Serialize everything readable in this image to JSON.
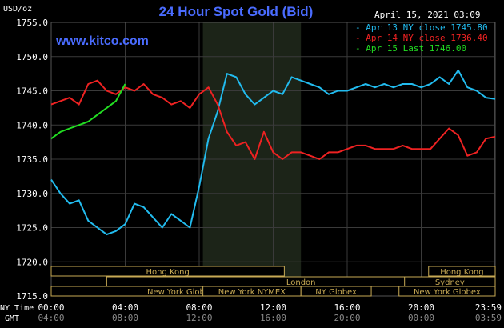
{
  "chart_data": {
    "type": "line",
    "title": "24 Hour Spot Gold (Bid)",
    "site": "www.kitco.com",
    "date_label": "April 15, 2021 03:09",
    "ylabel": "USD/oz",
    "ylim": [
      1715.0,
      1755.0
    ],
    "y_ticks": [
      "1755.0",
      "1750.0",
      "1745.0",
      "1740.0",
      "1735.0",
      "1730.0",
      "1725.0",
      "1720.0",
      "1715.0"
    ],
    "x_row_label_1": "NY Time",
    "x_row_label_2": "GMT",
    "x_ticks_ny": [
      "00:00",
      "04:00",
      "08:00",
      "12:00",
      "16:00",
      "20:00",
      "23:59"
    ],
    "x_ticks_gmt": [
      "04:00",
      "08:00",
      "12:00",
      "16:00",
      "20:00",
      "00:00",
      "03:59"
    ],
    "x_hours": [
      0,
      4,
      8,
      12,
      16,
      20,
      23.98
    ],
    "grid": true,
    "legend_position": "top-right",
    "sessions": [
      {
        "label": "Hong Kong",
        "row": 1,
        "start": 0,
        "end": 12.6
      },
      {
        "label": "London",
        "row": 2,
        "start": 3,
        "end": 24
      },
      {
        "label": "New York Globex",
        "row": 3,
        "start": 0,
        "end": 14
      },
      {
        "label": "New York NYMEX",
        "row": 3,
        "start": 8.2,
        "end": 13.5
      },
      {
        "label": "NY Globex",
        "row": 3,
        "start": 13.5,
        "end": 17.3
      },
      {
        "label": "Hong Kong",
        "row": 1,
        "start": 20.4,
        "end": 24
      },
      {
        "label": "Sydney",
        "row": 2,
        "start": 19.1,
        "end": 24
      },
      {
        "label": "New York Globex",
        "row": 3,
        "start": 18.8,
        "end": 24
      }
    ],
    "highlight_range": [
      8.2,
      13.5
    ],
    "series": [
      {
        "name": "Apr 13 NY close 1745.80",
        "color": "#22bbee",
        "x": [
          0,
          0.5,
          1,
          1.5,
          2,
          2.5,
          3,
          3.5,
          4,
          4.5,
          5,
          5.5,
          6,
          6.5,
          7,
          7.5,
          8,
          8.5,
          9,
          9.5,
          10,
          10.5,
          11,
          11.5,
          12,
          12.5,
          13,
          13.5,
          14,
          14.5,
          15,
          15.5,
          16,
          16.5,
          17,
          17.5,
          18,
          18.5,
          19,
          19.5,
          20,
          20.5,
          21,
          21.5,
          22,
          22.5,
          23,
          23.5,
          24
        ],
        "y": [
          1732,
          1730,
          1728.5,
          1729,
          1726,
          1725,
          1724,
          1724.5,
          1725.5,
          1728.5,
          1728,
          1726.5,
          1725,
          1727,
          1726,
          1725,
          1731,
          1738,
          1742,
          1747.5,
          1747,
          1744.5,
          1743,
          1744,
          1745,
          1744.5,
          1747,
          1746.5,
          1746,
          1745.5,
          1744.5,
          1745,
          1745,
          1745.5,
          1746,
          1745.5,
          1746,
          1745.5,
          1746,
          1746,
          1745.5,
          1746,
          1747,
          1746,
          1748,
          1745.5,
          1745,
          1744,
          1743.8
        ]
      },
      {
        "name": "Apr 14 NY close 1736.40",
        "color": "#ee2222",
        "x": [
          0,
          0.5,
          1,
          1.5,
          2,
          2.5,
          3,
          3.5,
          4,
          4.5,
          5,
          5.5,
          6,
          6.5,
          7,
          7.5,
          8,
          8.5,
          9,
          9.5,
          10,
          10.5,
          11,
          11.5,
          12,
          12.5,
          13,
          13.5,
          14,
          14.5,
          15,
          15.5,
          16,
          16.5,
          17,
          17.5,
          18,
          18.5,
          19,
          19.5,
          20,
          20.5,
          21,
          21.5,
          22,
          22.5,
          23,
          23.5,
          24
        ],
        "y": [
          1743,
          1743.5,
          1744,
          1743,
          1746,
          1746.5,
          1745,
          1744.5,
          1745.5,
          1745,
          1746,
          1744.5,
          1744,
          1743,
          1743.5,
          1742.5,
          1744.5,
          1745.5,
          1743,
          1739,
          1737,
          1737.5,
          1735,
          1739,
          1736,
          1735,
          1736,
          1736,
          1735.5,
          1735,
          1736,
          1736,
          1736.5,
          1737,
          1737,
          1736.5,
          1736.5,
          1736.5,
          1737,
          1736.5,
          1736.5,
          1736.5,
          1738,
          1739.5,
          1738.5,
          1735.5,
          1736,
          1738,
          1738.3
        ]
      },
      {
        "name": "Apr 15 Last 1746.00",
        "color": "#22dd22",
        "x": [
          0,
          0.5,
          1,
          1.5,
          2,
          2.5,
          3,
          3.5,
          4
        ],
        "y": [
          1738,
          1739,
          1739.5,
          1740,
          1740.5,
          1741.5,
          1742.5,
          1743.5,
          1746
        ]
      }
    ]
  }
}
